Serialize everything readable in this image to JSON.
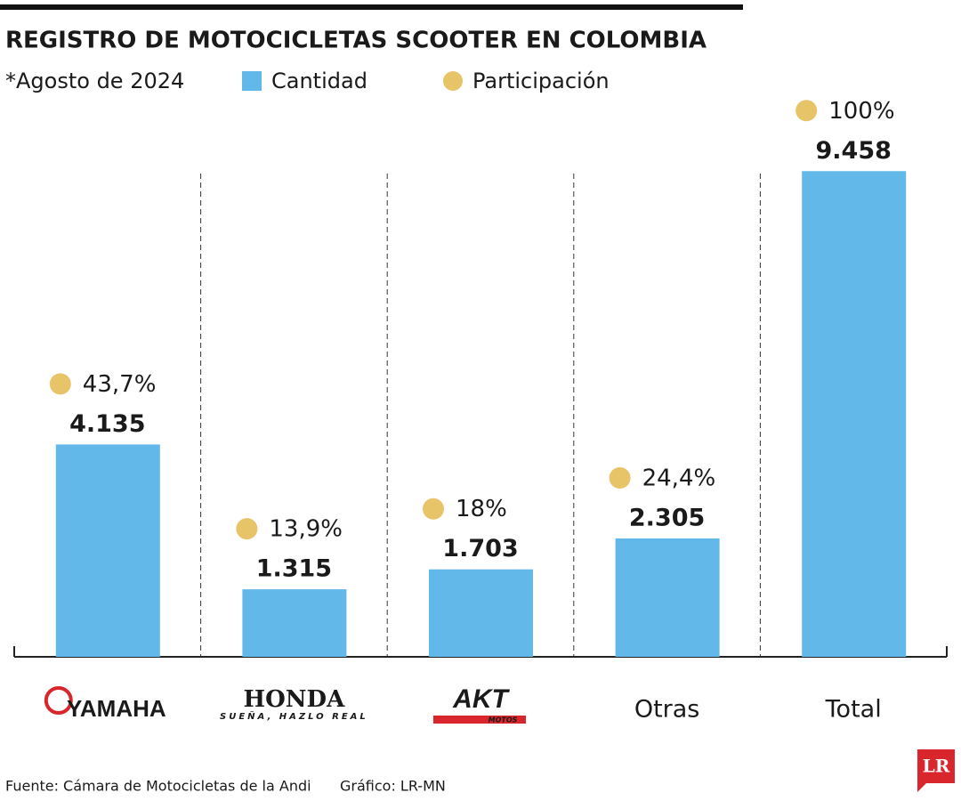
{
  "chart_data": {
    "type": "bar",
    "title": "REGISTRO DE MOTOCICLETAS SCOOTER EN COLOMBIA",
    "subtitle": "*Agosto de 2024",
    "categories": [
      "YAMAHA",
      "HONDA",
      "AKT",
      "Otras",
      "Total"
    ],
    "category_sublabels": [
      null,
      "SUEÑA, HAZLO REAL",
      "MOTOS",
      null,
      null
    ],
    "series": [
      {
        "name": "Cantidad",
        "color": "#62b8e8",
        "values": [
          4135,
          1315,
          1703,
          2305,
          9458
        ],
        "value_labels": [
          "4.135",
          "1.315",
          "1.703",
          "2.305",
          "9.458"
        ]
      },
      {
        "name": "Participación",
        "color": "#e8c468",
        "values": [
          43.7,
          13.9,
          18,
          24.4,
          100
        ],
        "value_labels": [
          "43,7%",
          "13,9%",
          "18%",
          "24,4%",
          "100%"
        ]
      }
    ],
    "ylim": [
      0,
      10000
    ],
    "source": "Fuente: Cámara de Motocicletas de la Andi",
    "credit": "Gráfico: LR-MN",
    "logo": "LR"
  }
}
